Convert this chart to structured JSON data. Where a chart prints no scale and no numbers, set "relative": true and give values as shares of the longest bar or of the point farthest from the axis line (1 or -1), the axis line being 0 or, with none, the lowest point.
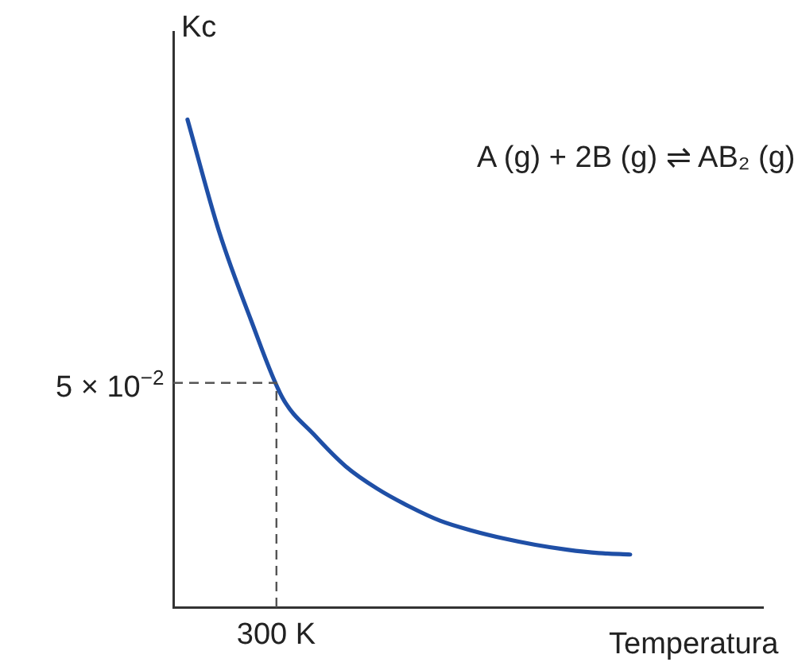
{
  "chart_data": {
    "type": "line",
    "relative": true,
    "xlabel": "Temperatura",
    "ylabel": "Kc",
    "categories": [
      null,
      null,
      null,
      null,
      null,
      null,
      null,
      null,
      null,
      null,
      null,
      null,
      null,
      null,
      null
    ],
    "series": [
      {
        "color": "#1f4fa6",
        "values": [
          1,
          0.77,
          0.59,
          0.43,
          0.354,
          0.289,
          0.243,
          0.207,
          0.177,
          0.157,
          0.141,
          0.128,
          0.118,
          0.111,
          0.108
        ]
      }
    ],
    "ref_lines": [
      {
        "axis": "y",
        "value": 0.46,
        "label": "5 × 10$^{−2}$",
        "color": "#555555",
        "line_style": "dashed"
      }
    ],
    "annotations": [
      "A (g) + 2B (g) ⇌ AB₂ (g)",
      "300 K"
    ],
    "grid": false,
    "legend": false,
    "marker": "none",
    "line_style": "solid"
  }
}
